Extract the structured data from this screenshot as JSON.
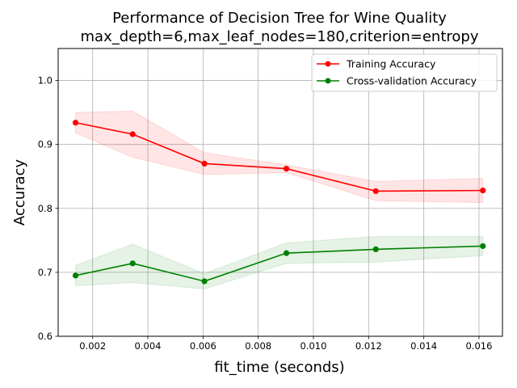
{
  "chart_data": {
    "type": "line",
    "title": "Performance of Decision Tree for Wine Quality",
    "subtitle": "max_depth=6,max_leaf_nodes=180,criterion=entropy",
    "xlabel": "fit_time (seconds)",
    "ylabel": "Accuracy",
    "xlim": [
      0.00075,
      0.01685
    ],
    "ylim": [
      0.6,
      1.05
    ],
    "xticks": [
      "0.002",
      "0.004",
      "0.006",
      "0.008",
      "0.010",
      "0.012",
      "0.014",
      "0.016"
    ],
    "yticks": [
      "0.6",
      "0.7",
      "0.8",
      "0.9",
      "1.0"
    ],
    "grid": true,
    "legend_position": "top-right",
    "series": [
      {
        "name": "Training Accuracy",
        "color": "#ff0000",
        "x": [
          0.00138,
          0.00345,
          0.00605,
          0.00902,
          0.01226,
          0.01614
        ],
        "y": [
          0.934,
          0.916,
          0.87,
          0.862,
          0.827,
          0.828
        ],
        "upper": [
          0.95,
          0.952,
          0.887,
          0.868,
          0.842,
          0.847
        ],
        "lower": [
          0.918,
          0.88,
          0.853,
          0.856,
          0.812,
          0.809
        ]
      },
      {
        "name": "Cross-validation Accuracy",
        "color": "#008000",
        "x": [
          0.00138,
          0.00345,
          0.00605,
          0.00902,
          0.01226,
          0.01614
        ],
        "y": [
          0.695,
          0.714,
          0.686,
          0.73,
          0.736,
          0.741
        ],
        "upper": [
          0.711,
          0.744,
          0.698,
          0.746,
          0.756,
          0.756
        ],
        "lower": [
          0.679,
          0.684,
          0.674,
          0.714,
          0.716,
          0.726
        ]
      }
    ]
  }
}
